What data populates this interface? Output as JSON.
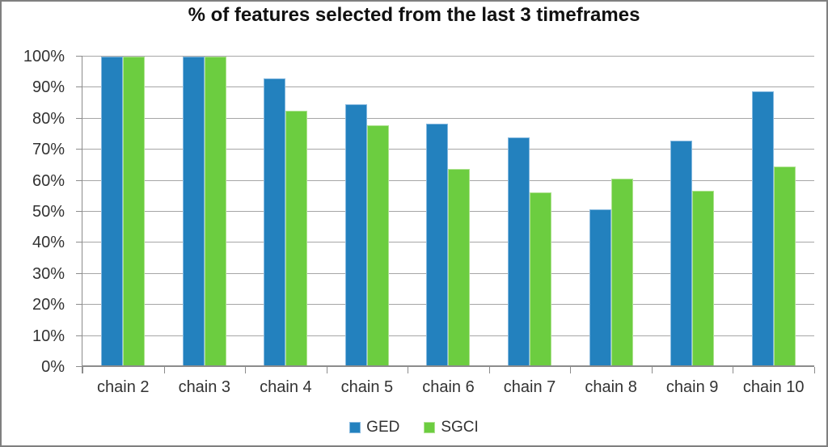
{
  "chart_data": {
    "type": "bar",
    "title": "% of features selected from the last 3 timeframes",
    "categories": [
      "chain 2",
      "chain 3",
      "chain 4",
      "chain 5",
      "chain 6",
      "chain 7",
      "chain 8",
      "chain 9",
      "chain 10"
    ],
    "series": [
      {
        "name": "GED",
        "color": "#2381be",
        "border_color": "#84b8df",
        "values": [
          100,
          100,
          93,
          84.7,
          78.3,
          74,
          50.8,
          72.8,
          88.8
        ]
      },
      {
        "name": "SGCI",
        "color": "#6ccd40",
        "border_color": "#afe291",
        "values": [
          100,
          100,
          82.5,
          77.8,
          63.7,
          56.3,
          60.7,
          56.8,
          64.5
        ]
      }
    ],
    "xlabel": "",
    "ylabel": "",
    "ylim": [
      0,
      100
    ],
    "y_tick_step": 10,
    "y_tick_labels": [
      "0%",
      "10%",
      "20%",
      "30%",
      "40%",
      "50%",
      "60%",
      "70%",
      "80%",
      "90%",
      "100%"
    ],
    "grid": true,
    "legend_position": "bottom"
  },
  "colors": {
    "gridline": "#a6a6a6",
    "axis": "#8c8c8c",
    "frame_border": "#7f7f7f",
    "text": "#333333",
    "title_text": "#111111",
    "background": "#ffffff"
  }
}
